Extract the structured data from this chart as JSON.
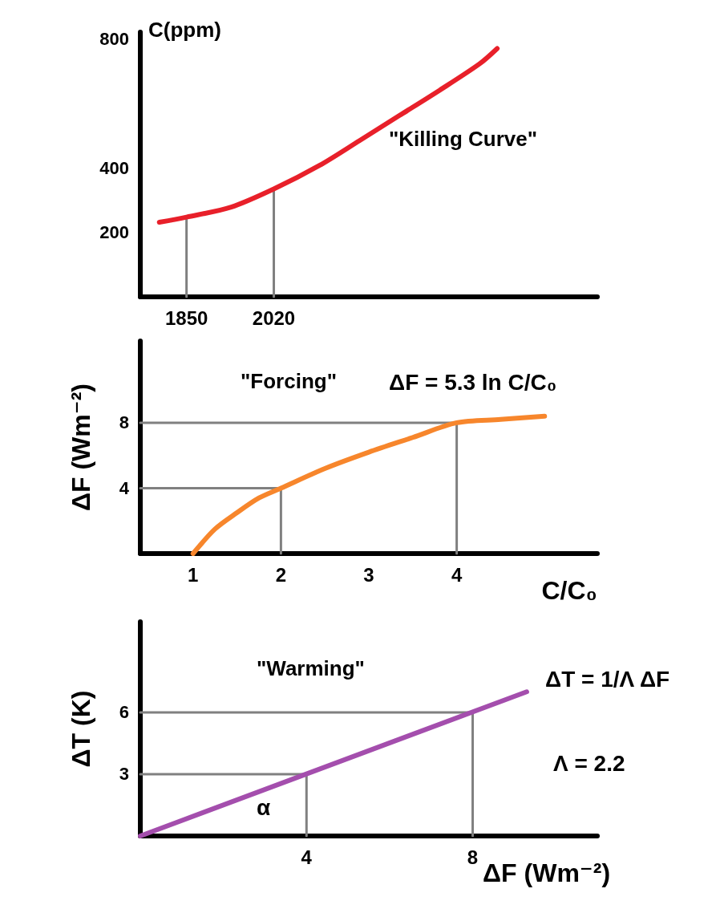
{
  "chart_data": [
    {
      "type": "line",
      "ylabel": "C(ppm)",
      "xlim": [
        1760,
        2650
      ],
      "xticks": [
        1850,
        2020
      ],
      "ylim": [
        0,
        820
      ],
      "yticks": [
        200,
        400,
        800
      ],
      "annotations": [
        "\"Killing Curve\""
      ],
      "series": [
        {
          "color": "#e8202a",
          "x": [
            1797,
            1850,
            1937,
            2020,
            2109,
            2187,
            2265,
            2343,
            2421,
            2455
          ],
          "values": [
            231,
            247,
            278,
            334,
            407,
            484,
            562,
            640,
            722,
            769
          ]
        },
        {
          "color": "#808080",
          "x": [
            1850,
            1850
          ],
          "values": [
            0,
            247
          ]
        },
        {
          "color": "#808080",
          "x": [
            2020,
            2020
          ],
          "values": [
            0,
            334
          ]
        }
      ]
    },
    {
      "type": "line",
      "ylabel": "ΔF (Wm⁻²)",
      "xlabel": "C/C₀",
      "xlim": [
        0.4,
        5.6
      ],
      "xticks": [
        1,
        2,
        3,
        4
      ],
      "ylim": [
        0,
        13
      ],
      "yticks": [
        4,
        8
      ],
      "annotations": [
        "\"Forcing\"",
        "ΔF = 5.3 ln C/C₀"
      ],
      "series": [
        {
          "color": "#808080",
          "x": [
            0.4,
            2,
            2
          ],
          "values": [
            4,
            4,
            0
          ]
        },
        {
          "color": "#808080",
          "x": [
            0.4,
            4,
            4
          ],
          "values": [
            8,
            8,
            0
          ]
        },
        {
          "color": "#f7862c",
          "x": [
            1,
            1.25,
            1.5,
            1.75,
            2,
            2.5,
            3,
            3.5,
            4,
            4.5,
            5
          ],
          "values": [
            0,
            1.5,
            2.5,
            3.4,
            4,
            5.2,
            6.2,
            7.1,
            8,
            8.2,
            8.4
          ]
        }
      ]
    },
    {
      "type": "line",
      "ylabel": "ΔT (K)",
      "xlabel": "ΔF (Wm⁻²)",
      "xlim": [
        0,
        11
      ],
      "xticks": [
        4,
        8
      ],
      "ylim": [
        0,
        10.4
      ],
      "yticks": [
        3,
        6
      ],
      "annotations": [
        "\"Warming\"",
        "ΔT = 1/Λ ΔF",
        "Λ = 2.2",
        "α"
      ],
      "series": [
        {
          "color": "#808080",
          "x": [
            0,
            4,
            4
          ],
          "values": [
            3,
            3,
            0
          ]
        },
        {
          "color": "#808080",
          "x": [
            0,
            8,
            8
          ],
          "values": [
            6,
            6,
            0
          ]
        },
        {
          "color": "#a44ead",
          "x": [
            0,
            9.3
          ],
          "values": [
            0,
            7
          ]
        }
      ]
    }
  ]
}
